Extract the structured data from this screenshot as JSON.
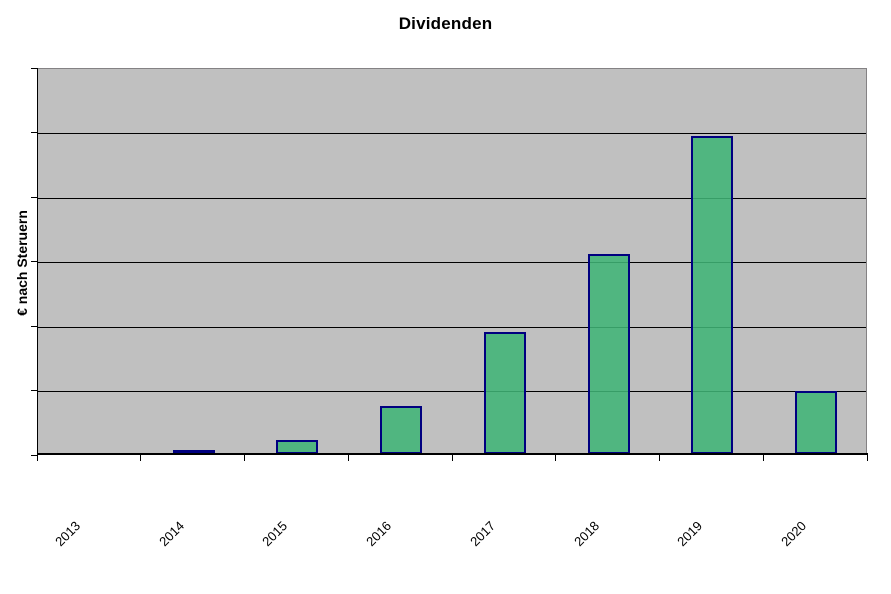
{
  "chart_data": {
    "type": "bar",
    "title": "Dividenden",
    "xlabel": "",
    "ylabel": "€ nach Steruern",
    "categories": [
      "2013",
      "2014",
      "2015",
      "2016",
      "2017",
      "2018",
      "2019",
      "2020"
    ],
    "values": [
      0,
      0.06,
      0.22,
      0.74,
      1.89,
      3.1,
      4.93,
      0.98
    ],
    "value_unit": "gridline-divisions (y axis shows no numeric tick labels)",
    "ylim": [
      0,
      6
    ],
    "gridline_interval": 1,
    "grid": true,
    "legend": false,
    "x_tick_rotation_deg": -45,
    "colors": {
      "bar_fill": "#3FB476",
      "bar_border": "#000080",
      "plot_background": "#C0C0C0",
      "plot_border": "#848284",
      "gridline": "#000000",
      "axis": "#000000",
      "text": "#000000",
      "page_background": "#FFFFFF"
    }
  }
}
